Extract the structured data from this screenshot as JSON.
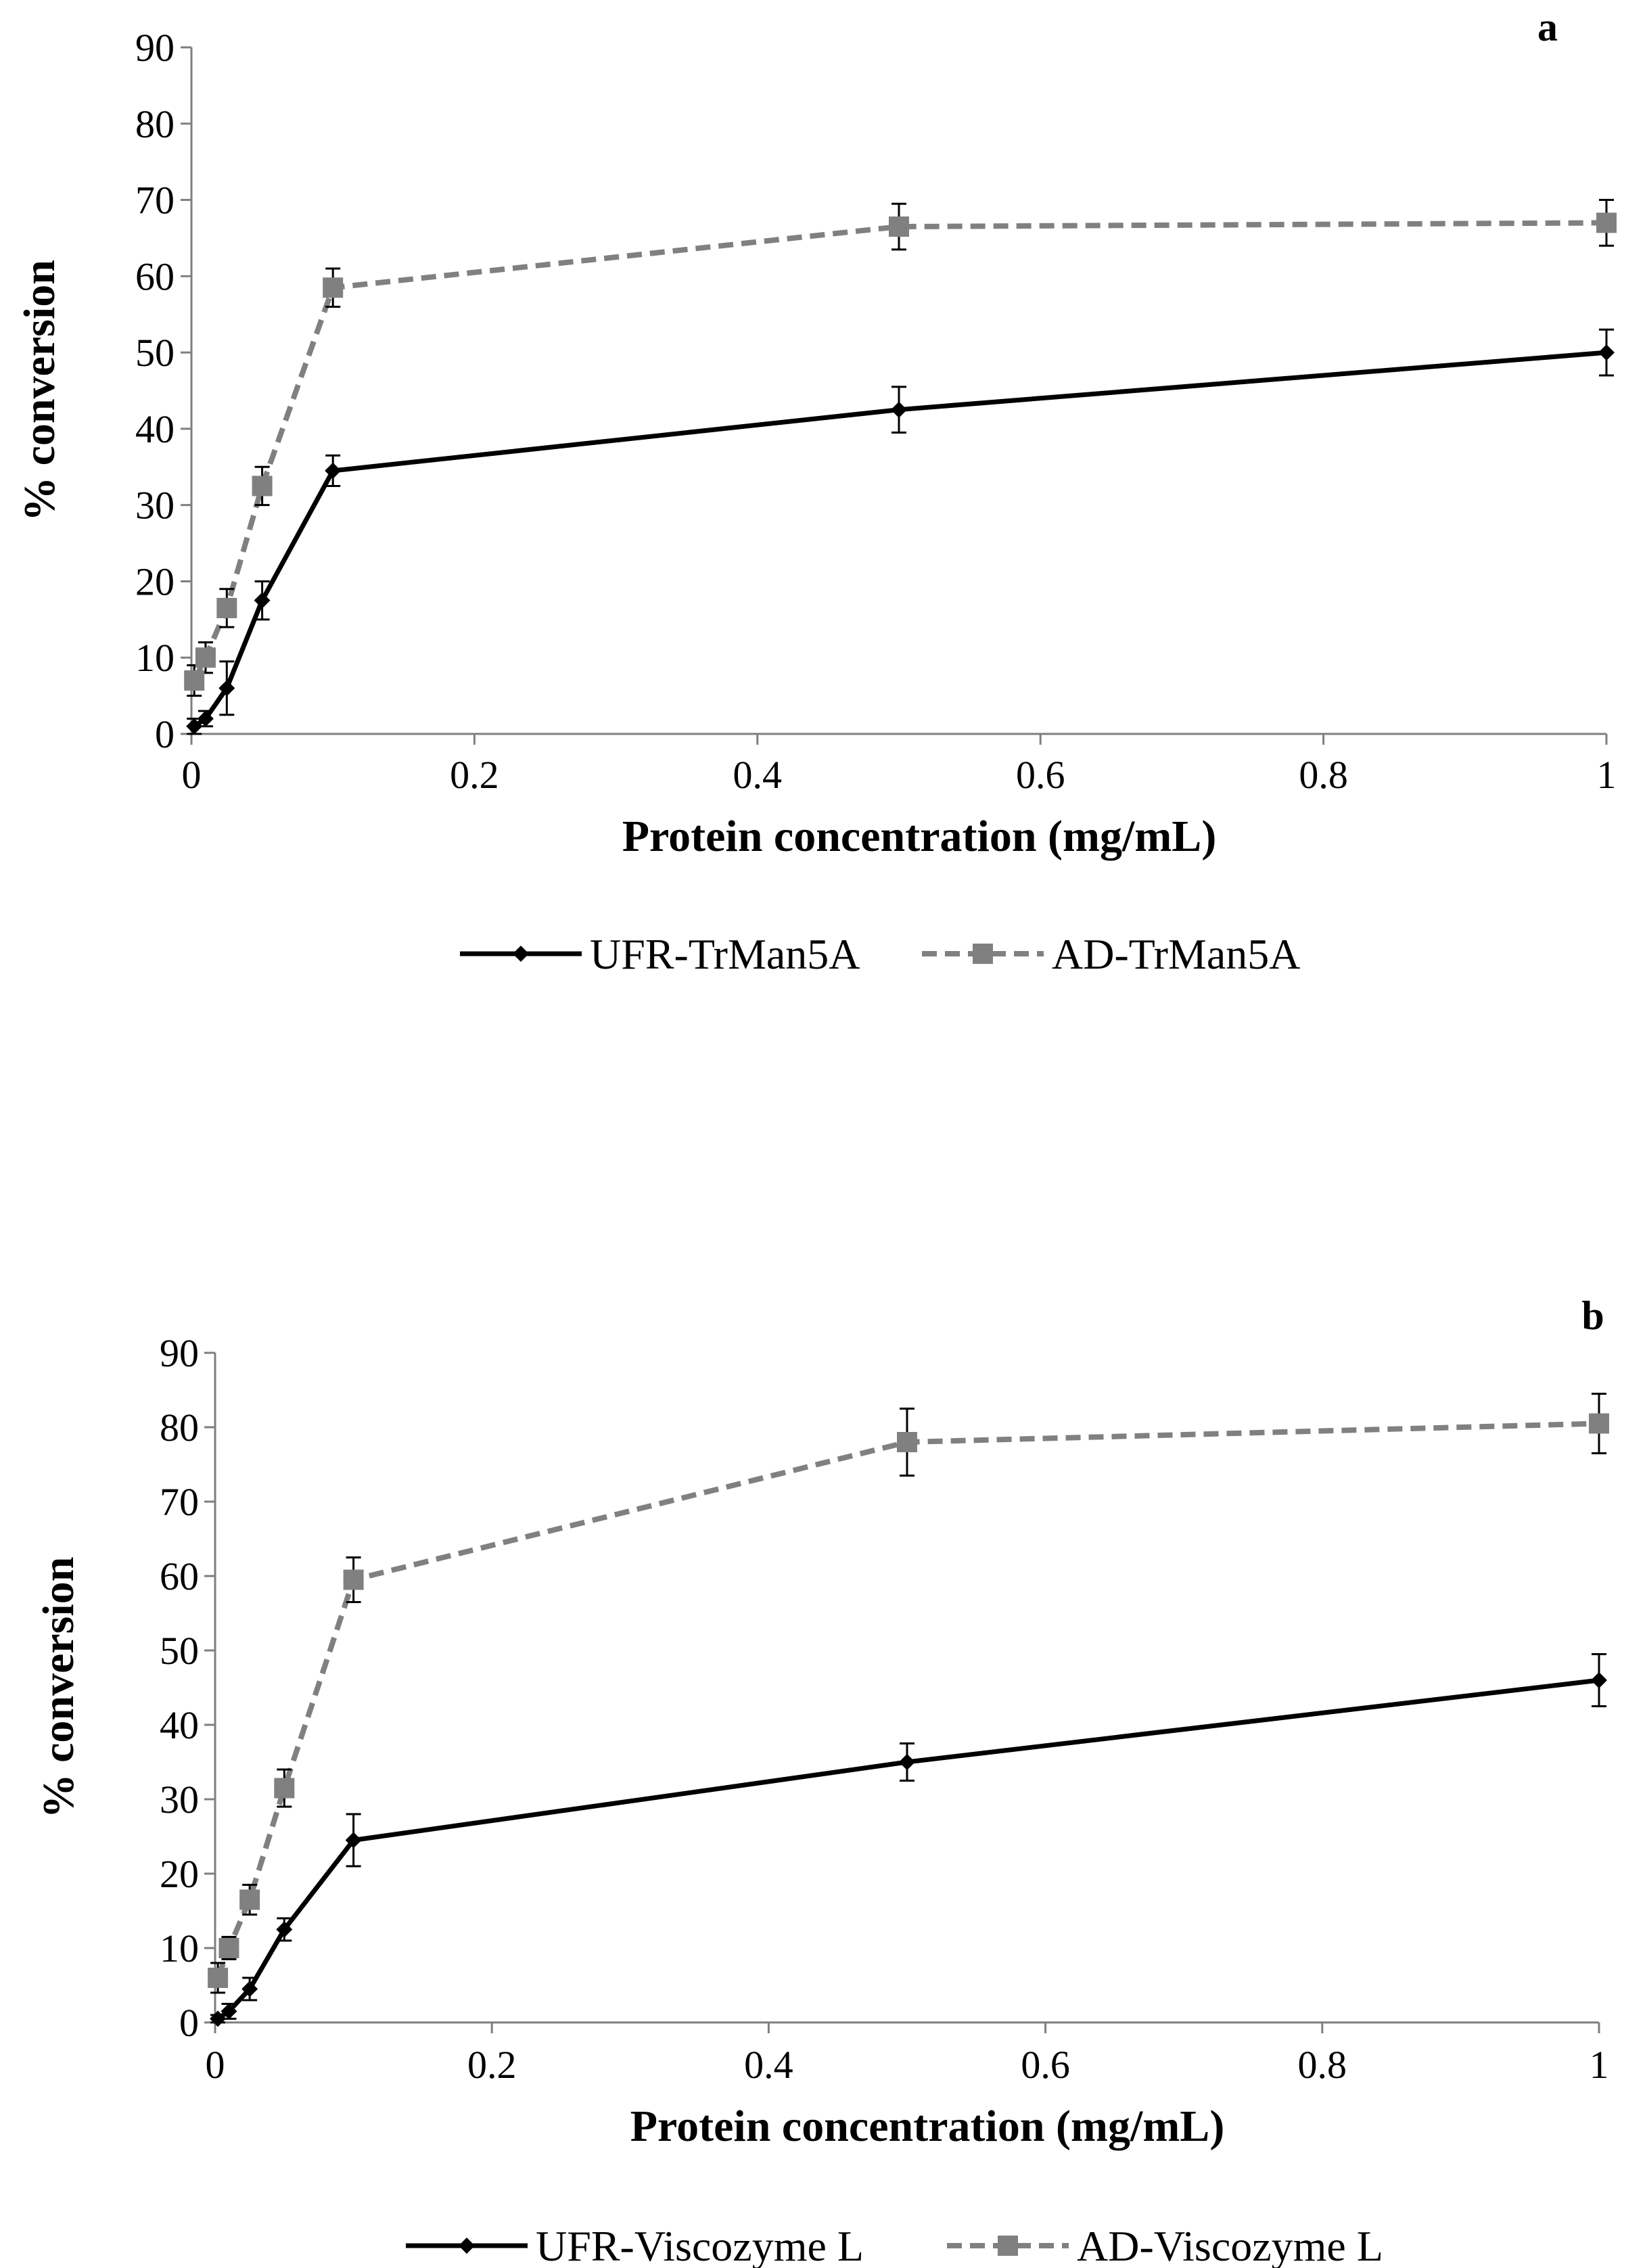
{
  "chart_data": [
    {
      "type": "line",
      "panel_label": "a",
      "xlabel": "Protein concentration (mg/mL)",
      "ylabel": "% conversion",
      "xlim": [
        0,
        1
      ],
      "ylim": [
        0,
        90
      ],
      "x_ticks": [
        "0",
        "0.2",
        "0.4",
        "0.6",
        "0.8",
        "1"
      ],
      "y_ticks": [
        "0",
        "10",
        "20",
        "30",
        "40",
        "50",
        "60",
        "70",
        "80",
        "90"
      ],
      "grid": false,
      "legend_position": "bottom",
      "series": [
        {
          "name": "UFR-TrMan5A",
          "color": "#000000",
          "line_style": "solid",
          "marker": "diamond",
          "x": [
            0.002,
            0.01,
            0.025,
            0.05,
            0.1,
            0.5,
            1.0
          ],
          "y": [
            1,
            2,
            6,
            17.5,
            34.5,
            42.5,
            50
          ],
          "error": [
            1,
            1,
            3.5,
            2.5,
            2,
            3,
            3
          ]
        },
        {
          "name": "AD-TrMan5A",
          "color": "#808080",
          "line_style": "dashed",
          "marker": "square",
          "x": [
            0.002,
            0.01,
            0.025,
            0.05,
            0.1,
            0.5,
            1.0
          ],
          "y": [
            7,
            10,
            16.5,
            32.5,
            58.5,
            66.5,
            67
          ],
          "error": [
            2,
            2,
            2.5,
            2.5,
            2.5,
            3,
            3
          ]
        }
      ]
    },
    {
      "type": "line",
      "panel_label": "b",
      "xlabel": "Protein concentration (mg/mL)",
      "ylabel": "% conversion",
      "xlim": [
        0,
        1
      ],
      "ylim": [
        0,
        90
      ],
      "x_ticks": [
        "0",
        "0.2",
        "0.4",
        "0.6",
        "0.8",
        "1"
      ],
      "y_ticks": [
        "0",
        "10",
        "20",
        "30",
        "40",
        "50",
        "60",
        "70",
        "80",
        "90"
      ],
      "grid": false,
      "legend_position": "bottom",
      "series": [
        {
          "name": "UFR-Viscozyme L",
          "color": "#000000",
          "line_style": "solid",
          "marker": "diamond",
          "x": [
            0.002,
            0.01,
            0.025,
            0.05,
            0.1,
            0.5,
            1.0
          ],
          "y": [
            0.5,
            1.5,
            4.5,
            12.5,
            24.5,
            35,
            46
          ],
          "error": [
            0.5,
            1,
            1.5,
            1.5,
            3.5,
            2.5,
            3.5
          ]
        },
        {
          "name": "AD-Viscozyme L",
          "color": "#808080",
          "line_style": "dashed",
          "marker": "square",
          "x": [
            0.002,
            0.01,
            0.025,
            0.05,
            0.1,
            0.5,
            1.0
          ],
          "y": [
            6,
            10,
            16.5,
            31.5,
            59.5,
            78,
            80.5
          ],
          "error": [
            2,
            1.5,
            2,
            2.5,
            3,
            4.5,
            4
          ]
        }
      ]
    }
  ]
}
